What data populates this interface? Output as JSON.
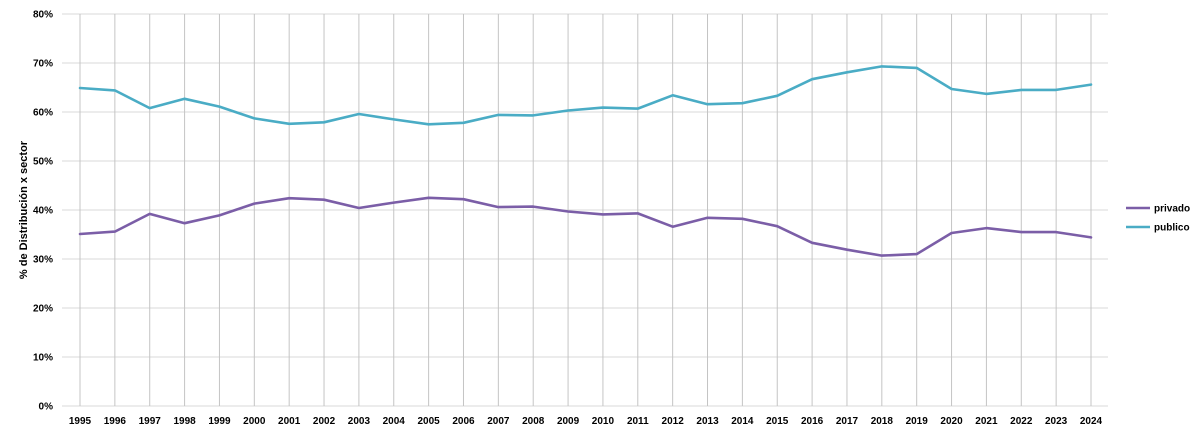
{
  "chart_data": {
    "type": "line",
    "title": "",
    "xlabel": "",
    "ylabel": "% de Distribución x sector",
    "ylim": [
      0,
      80
    ],
    "y_ticks": [
      "0%",
      "10%",
      "20%",
      "30%",
      "40%",
      "50%",
      "60%",
      "70%",
      "80%"
    ],
    "grid": true,
    "legend_position": "right",
    "categories": [
      "1995",
      "1996",
      "1997",
      "1998",
      "1999",
      "2000",
      "2001",
      "2002",
      "2003",
      "2004",
      "2005",
      "2006",
      "2007",
      "2008",
      "2009",
      "2010",
      "2011",
      "2012",
      "2013",
      "2014",
      "2015",
      "2016",
      "2017",
      "2018",
      "2019",
      "2020",
      "2021",
      "2022",
      "2023",
      "2024"
    ],
    "series": [
      {
        "name": "privado",
        "color": "#7b5ea7",
        "values": [
          35.1,
          35.6,
          39.2,
          37.3,
          38.9,
          41.3,
          42.4,
          42.1,
          40.4,
          41.5,
          42.5,
          42.2,
          40.6,
          40.7,
          39.7,
          39.1,
          39.3,
          36.6,
          38.4,
          38.2,
          36.7,
          33.3,
          31.9,
          30.7,
          31.0,
          35.3,
          36.3,
          35.5,
          35.5,
          34.4
        ]
      },
      {
        "name": "publico",
        "color": "#4aacc5",
        "values": [
          64.9,
          64.4,
          60.8,
          62.7,
          61.1,
          58.7,
          57.6,
          57.9,
          59.6,
          58.5,
          57.5,
          57.8,
          59.4,
          59.3,
          60.3,
          60.9,
          60.7,
          63.4,
          61.6,
          61.8,
          63.3,
          66.7,
          68.1,
          69.3,
          69.0,
          64.7,
          63.7,
          64.5,
          64.5,
          65.6
        ]
      }
    ]
  }
}
